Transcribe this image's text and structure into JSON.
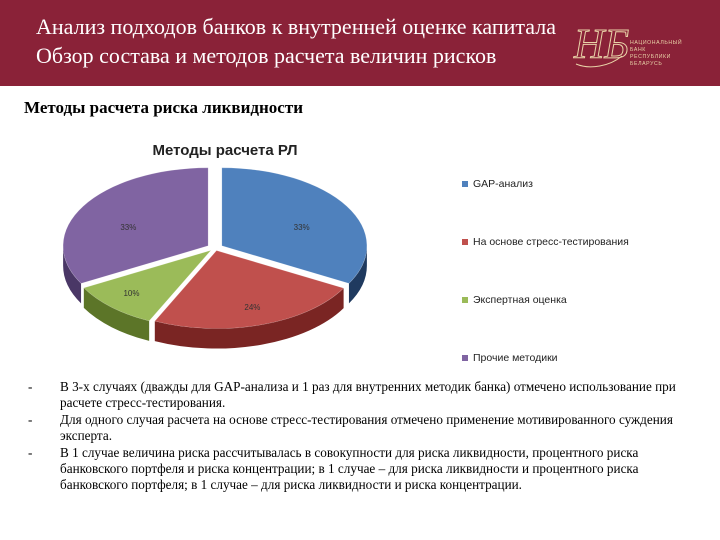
{
  "header": {
    "title_line1": "Анализ подходов банков к внутренней оценке капитала",
    "title_line2": "Обзор состава и методов расчета величин рисков",
    "logo_monogram": "НБ",
    "logo_lines": [
      "НАЦИОНАЛЬНЫЙ",
      "БАНК",
      "РЕСПУБЛИКИ",
      "БЕЛАРУСЬ"
    ]
  },
  "section_title": "Методы расчета риска ликвидности",
  "chart_data": {
    "type": "pie",
    "title": "Методы расчета РЛ",
    "categories": [
      "GAP-анализ",
      "На основе стресс-тестирования",
      "Экспертная оценка",
      "Прочие методики"
    ],
    "values": [
      33,
      24,
      10,
      33
    ],
    "labels": [
      "33%",
      "24%",
      "10%",
      "33%"
    ],
    "colors": [
      "#4f81bd",
      "#c0504d",
      "#9bbb59",
      "#8064a2"
    ],
    "side_colors": [
      "#1f3a5f",
      "#7a2523",
      "#5c7528",
      "#4a3766"
    ],
    "legend_position": "right",
    "style": "3d"
  },
  "notes": {
    "dash": "-",
    "items": [
      "В 3-х случаях (дважды для GAP-анализа и 1 раз для внутренних методик банка) отмечено использование при расчете стресс-тестирования.",
      "Для одного случая расчета на основе стресс-тестирования отмечено применение мотивированного суждения эксперта.",
      "В 1 случае величина риска рассчитывалась в совокупности для риска ликвидности, процентного риска банковского портфеля и риска концентрации; в 1 случае – для риска ликвидности и процентного риска банковского портфеля; в 1 случае – для риска ликвидности и риска концентрации."
    ]
  }
}
